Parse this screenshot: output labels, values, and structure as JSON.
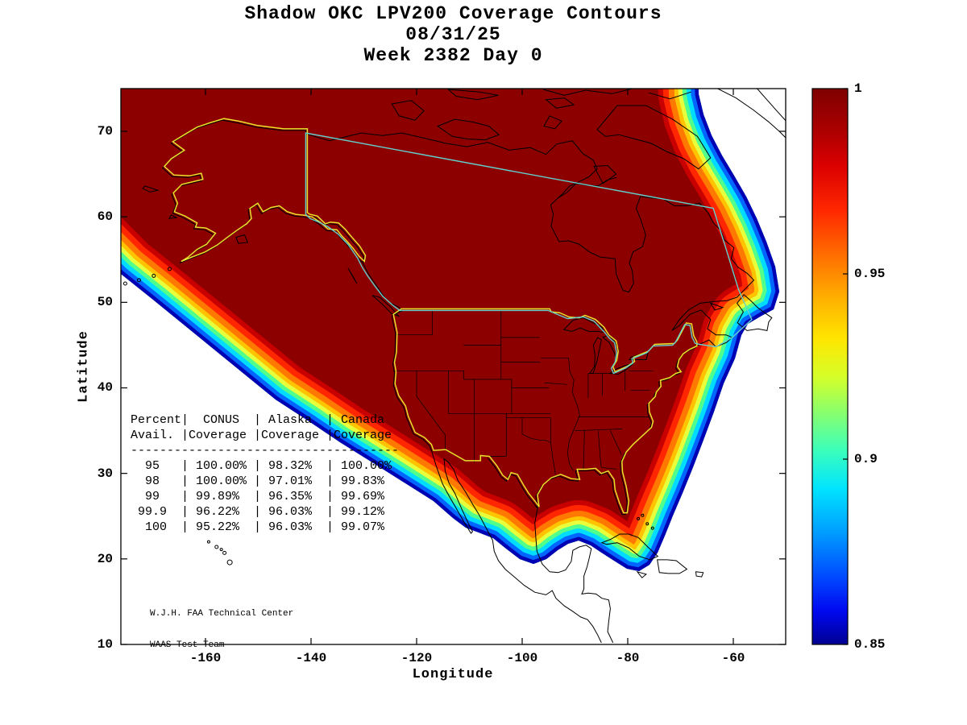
{
  "title": {
    "line1": "Shadow OKC LPV200 Coverage Contours",
    "line2": "08/31/25",
    "line3": "Week 2382 Day 0"
  },
  "axes": {
    "xlabel": "Longitude",
    "ylabel": "Latitude",
    "x_ticks": [
      -160,
      -140,
      -120,
      -100,
      -80,
      -60
    ],
    "y_ticks": [
      70,
      60,
      50,
      40,
      30,
      20,
      10
    ]
  },
  "colorbar": {
    "labels": [
      "1",
      "0.95",
      "0.9",
      "0.85"
    ],
    "values": [
      1,
      0.95,
      0.9,
      0.85
    ],
    "min": 0.85,
    "max": 1
  },
  "coverage_table": {
    "headers_line1": [
      "Percent",
      "CONUS",
      "Alaska",
      "Canada"
    ],
    "headers_line2": [
      "Avail.",
      "Coverage",
      "Coverage",
      "Coverage"
    ],
    "rows": [
      [
        "95",
        "100.00%",
        "98.32%",
        "100.00%"
      ],
      [
        "98",
        "100.00%",
        "97.01%",
        "99.83%"
      ],
      [
        "99",
        "99.89%",
        "96.35%",
        "99.69%"
      ],
      [
        "99.9",
        "96.22%",
        "96.03%",
        "99.12%"
      ],
      [
        "100",
        "95.22%",
        "96.03%",
        "99.07%"
      ]
    ]
  },
  "credit": {
    "line1": "W.J.H. FAA Technical Center",
    "line2": "WAAS Test Team"
  },
  "chart_data": {
    "type": "heatmap",
    "subtype": "filled_contour_map",
    "title": "Shadow OKC LPV200 Coverage Contours",
    "subtitle_date": "08/31/25",
    "subtitle_week": "Week 2382 Day 0",
    "xlabel": "Longitude",
    "ylabel": "Latitude",
    "xlim": [
      -176,
      -50
    ],
    "ylim": [
      10,
      75
    ],
    "x_ticks": [
      -160,
      -140,
      -120,
      -100,
      -80,
      -60
    ],
    "y_ticks": [
      10,
      20,
      30,
      40,
      50,
      60,
      70
    ],
    "colorbar": {
      "min": 0.85,
      "max": 1,
      "ticks": [
        1,
        0.95,
        0.9,
        0.85
      ],
      "colormap": "jet",
      "top_color_hex": "#7f0000",
      "bottom_color_hex": "#000091"
    },
    "region": "North America (CONUS, Alaska, Canada)",
    "interior_value": 1,
    "edge_value": 0.85,
    "coverage_table": {
      "columns": [
        "Percent Avail.",
        "CONUS Coverage",
        "Alaska Coverage",
        "Canada Coverage"
      ],
      "rows": [
        [
          95,
          100.0,
          98.32,
          100.0
        ],
        [
          98,
          100.0,
          97.01,
          99.83
        ],
        [
          99,
          99.89,
          96.35,
          99.69
        ],
        [
          99.9,
          96.22,
          96.03,
          99.12
        ],
        [
          100,
          95.22,
          96.03,
          99.07
        ]
      ]
    }
  }
}
